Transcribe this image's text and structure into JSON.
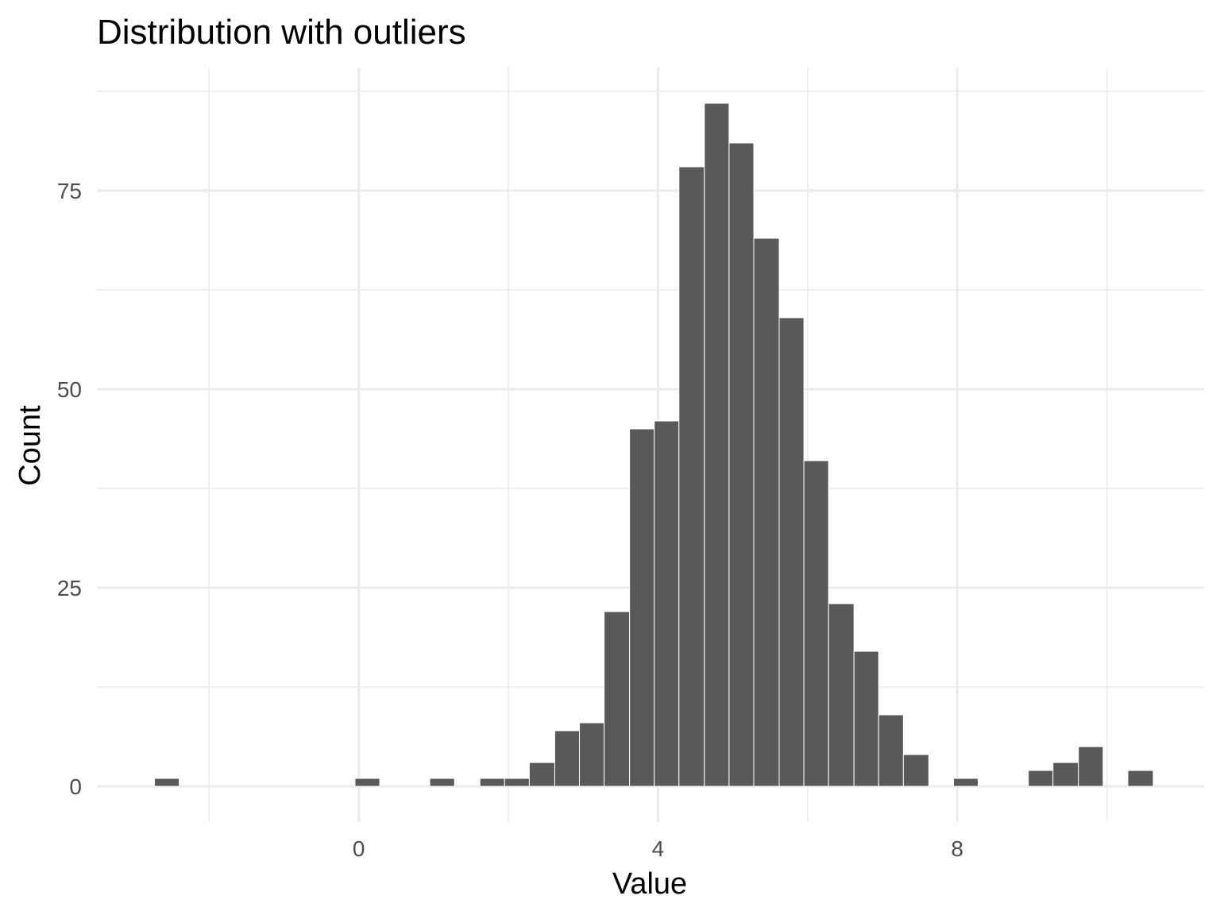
{
  "chart_data": {
    "type": "bar",
    "title": "Distribution with outliers",
    "xlabel": "Value",
    "ylabel": "Count",
    "xlim": [
      -3.5,
      11.3
    ],
    "ylim": [
      -4.5,
      90.5
    ],
    "x_ticks": [
      0,
      4,
      8
    ],
    "x_minor_ticks": [
      -2,
      2,
      6,
      10
    ],
    "y_ticks": [
      0,
      25,
      50,
      75
    ],
    "y_minor_ticks": [
      12.5,
      37.5,
      62.5,
      87.5
    ],
    "grid": true,
    "bar_fill": "#595959",
    "bar_outline": "#ffffff",
    "bins": [
      {
        "x0": -2.73,
        "x1": -2.4,
        "count": 1
      },
      {
        "x0": -0.05,
        "x1": 0.28,
        "count": 1
      },
      {
        "x0": 0.95,
        "x1": 1.28,
        "count": 1
      },
      {
        "x0": 1.62,
        "x1": 1.95,
        "count": 1
      },
      {
        "x0": 1.95,
        "x1": 2.28,
        "count": 1
      },
      {
        "x0": 2.28,
        "x1": 2.62,
        "count": 3
      },
      {
        "x0": 2.62,
        "x1": 2.95,
        "count": 7
      },
      {
        "x0": 2.95,
        "x1": 3.28,
        "count": 8
      },
      {
        "x0": 3.28,
        "x1": 3.62,
        "count": 22
      },
      {
        "x0": 3.62,
        "x1": 3.95,
        "count": 45
      },
      {
        "x0": 3.95,
        "x1": 4.28,
        "count": 46
      },
      {
        "x0": 4.28,
        "x1": 4.62,
        "count": 78
      },
      {
        "x0": 4.62,
        "x1": 4.95,
        "count": 86
      },
      {
        "x0": 4.95,
        "x1": 5.28,
        "count": 81
      },
      {
        "x0": 5.28,
        "x1": 5.62,
        "count": 69
      },
      {
        "x0": 5.62,
        "x1": 5.95,
        "count": 59
      },
      {
        "x0": 5.95,
        "x1": 6.28,
        "count": 41
      },
      {
        "x0": 6.28,
        "x1": 6.62,
        "count": 23
      },
      {
        "x0": 6.62,
        "x1": 6.95,
        "count": 17
      },
      {
        "x0": 6.95,
        "x1": 7.28,
        "count": 9
      },
      {
        "x0": 7.28,
        "x1": 7.62,
        "count": 4
      },
      {
        "x0": 7.95,
        "x1": 8.28,
        "count": 1
      },
      {
        "x0": 8.95,
        "x1": 9.28,
        "count": 2
      },
      {
        "x0": 9.28,
        "x1": 9.62,
        "count": 3
      },
      {
        "x0": 9.62,
        "x1": 9.95,
        "count": 5
      },
      {
        "x0": 10.28,
        "x1": 10.62,
        "count": 2
      }
    ]
  }
}
